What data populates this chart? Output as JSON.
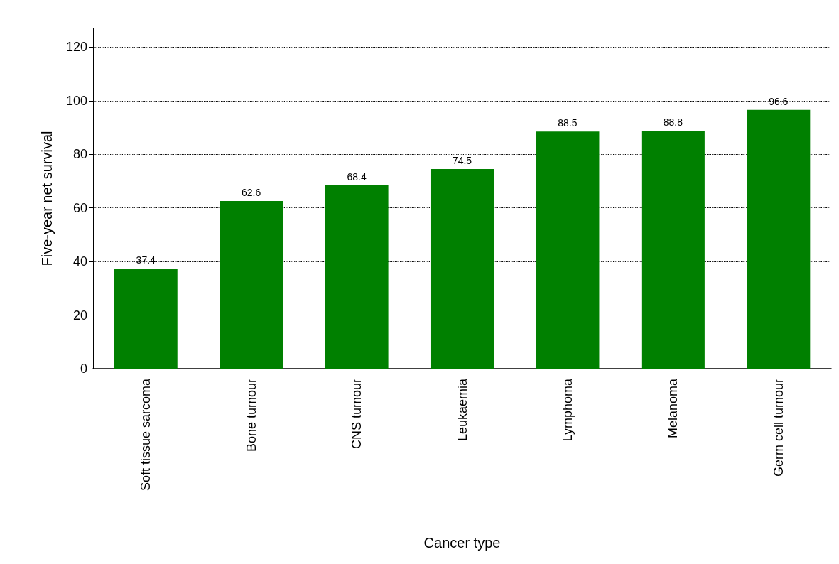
{
  "chart_data": {
    "type": "bar",
    "xlabel": "Cancer type",
    "ylabel": "Five-year net survival",
    "categories": [
      "Soft tissue sarcoma",
      "Bone tumour",
      "CNS tumour",
      "Leukaemia",
      "Lymphoma",
      "Melanoma",
      "Germ cell tumour"
    ],
    "values": [
      37.4,
      62.6,
      68.4,
      74.5,
      88.5,
      88.8,
      96.6
    ],
    "color": "#008000",
    "ylim": [
      0,
      127
    ],
    "yticks": [
      0,
      20,
      40,
      60,
      80,
      100,
      120
    ],
    "grid": "y",
    "data_labels": true
  }
}
